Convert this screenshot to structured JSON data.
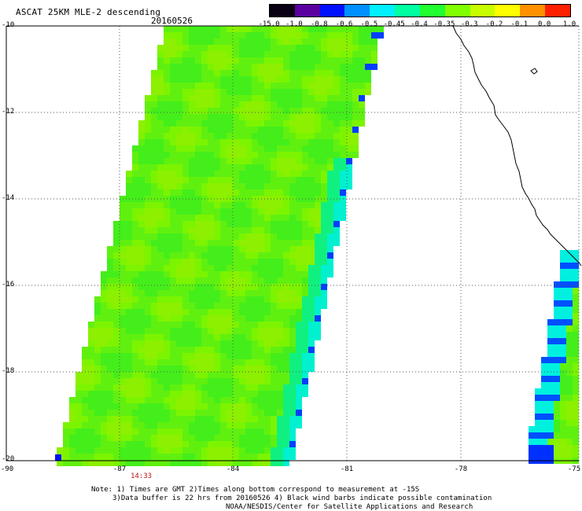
{
  "header": {
    "title": "ASCAT 25KM MLE-2 descending",
    "date": "20160526"
  },
  "colorbar": {
    "labels": [
      "-15.0",
      "-1.0",
      "-0.8",
      "-0.6",
      "-0.5",
      "-0.45",
      "-0.4",
      "-0.35",
      "-0.3",
      "-0.2",
      "-0.1",
      "0.0",
      "1.0"
    ],
    "colors": [
      "#0a0014",
      "#5a00a0",
      "#0010ff",
      "#0090ff",
      "#00f0ff",
      "#00ffa0",
      "#20ff30",
      "#80ff00",
      "#c8ff00",
      "#ffff00",
      "#ff9000",
      "#ff2000"
    ]
  },
  "axes": {
    "lat_labels": [
      "-10",
      "-12",
      "-14",
      "-16",
      "-18",
      "-20"
    ],
    "lon_labels": [
      "-90",
      "-87",
      "-84",
      "-81",
      "-78",
      "-75"
    ]
  },
  "time_label": "14:33",
  "notes": {
    "line1": "Note: 1) Times are GMT 2)Times along bottom correspond to measurement at -15S",
    "line2": "3)Data buffer is 22 hrs from 20160526 4) Black wind barbs indicate possible contamination",
    "line3": "NOAA/NESDIS/Center for Satellite Applications and Research"
  }
}
